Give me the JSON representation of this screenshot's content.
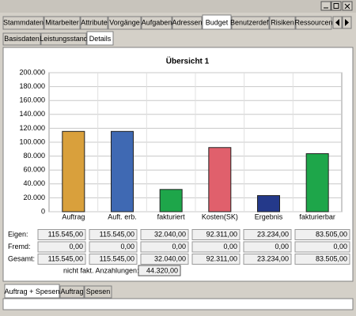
{
  "tabs": [
    "Stammdaten",
    "Mitarbeiter",
    "Attribute",
    "Vorgänge",
    "Aufgaben",
    "Adressen",
    "Budget",
    "Benutzerdef.",
    "Risiken",
    "Ressourcen"
  ],
  "subtabs": [
    "Basisdaten",
    "Leistungsstand",
    "Details"
  ],
  "chart_data": {
    "type": "bar",
    "title": "Übersicht 1",
    "categories": [
      "Auftrag",
      "Auft. erb.",
      "fakturiert",
      "Kosten(SK)",
      "Ergebnis",
      "fakturierbar"
    ],
    "values": [
      115545,
      115545,
      32040,
      92311,
      23234,
      83505
    ],
    "colors": [
      "#d9a03c",
      "#3f69b3",
      "#1ea64a",
      "#e0606c",
      "#24398a",
      "#1ea64a"
    ],
    "ylim": [
      0,
      200000
    ],
    "yticks": [
      0,
      {
        "value": 20000,
        "label": "20.000"
      },
      {
        "value": 40000,
        "label": "40.000"
      },
      {
        "value": 60000,
        "label": "60.000"
      },
      {
        "value": 80000,
        "label": "80.000"
      },
      {
        "value": 100000,
        "label": "100.000"
      },
      {
        "value": 120000,
        "label": "120.000"
      },
      {
        "value": 140000,
        "label": "140.000"
      },
      {
        "value": 160000,
        "label": "160.000"
      },
      {
        "value": 180000,
        "label": "180.000"
      },
      {
        "value": 200000,
        "label": "200.000"
      }
    ],
    "grid": true
  },
  "table": {
    "row_labels": [
      "Eigen:",
      "Fremd:",
      "Gesamt:"
    ],
    "rows": [
      [
        "115.545,00",
        "115.545,00",
        "32.040,00",
        "92.311,00",
        "23.234,00",
        "83.505,00"
      ],
      [
        "0,00",
        "0,00",
        "0,00",
        "0,00",
        "0,00",
        "0,00"
      ],
      [
        "115.545,00",
        "115.545,00",
        "32.040,00",
        "92.311,00",
        "23.234,00",
        "83.505,00"
      ]
    ],
    "footer_label": "nicht fakt. Anzahlungen:",
    "footer_value": "44.320,00"
  },
  "bottom_tabs": [
    "Auftrag + Spesen",
    "Auftrag",
    "Spesen"
  ]
}
